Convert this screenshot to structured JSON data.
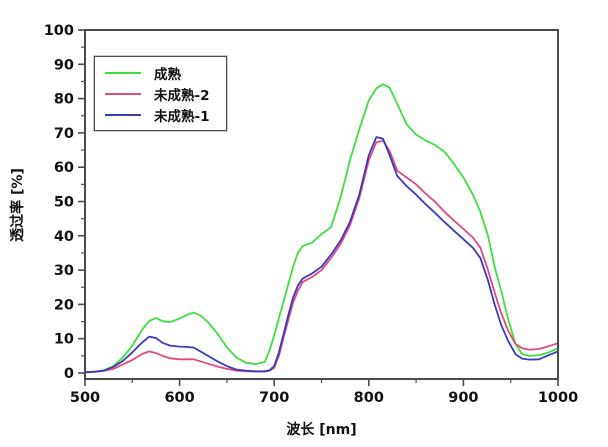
{
  "chart_data": {
    "type": "line",
    "title": "",
    "xlabel": "波长 [nm]",
    "ylabel": "透过率 [%]",
    "xlim": [
      500,
      1000
    ],
    "ylim": [
      0,
      100
    ],
    "x_major_tick_step": 100,
    "x_minor_tick_step": 50,
    "y_major_tick_step": 10,
    "y_minor_tick_step": 5,
    "grid": false,
    "legend_position": "top-left",
    "frame_color": "#4b4b4b",
    "x": [
      500,
      510,
      520,
      530,
      540,
      550,
      560,
      568,
      575,
      582,
      590,
      600,
      608,
      615,
      622,
      630,
      640,
      650,
      660,
      670,
      680,
      690,
      695,
      700,
      705,
      710,
      715,
      720,
      725,
      730,
      740,
      750,
      760,
      770,
      780,
      790,
      800,
      808,
      815,
      822,
      830,
      840,
      850,
      860,
      870,
      880,
      890,
      900,
      910,
      918,
      926,
      933,
      940,
      947,
      955,
      962,
      970,
      980,
      990,
      1000
    ],
    "series": [
      {
        "name": "成熟",
        "color": "#3fdf3f",
        "values": [
          0.2,
          0.4,
          0.8,
          2.0,
          4.5,
          8.0,
          12.5,
          15.2,
          16.0,
          15.1,
          14.8,
          15.9,
          17.0,
          17.6,
          16.8,
          14.8,
          11.5,
          7.5,
          4.5,
          3.0,
          2.6,
          3.2,
          6.5,
          11.0,
          16.0,
          21.0,
          26.0,
          31.0,
          35.0,
          37.0,
          38.0,
          40.5,
          42.5,
          51.0,
          62.0,
          71.0,
          79.5,
          83.0,
          84.2,
          83.2,
          78.5,
          72.5,
          69.5,
          67.8,
          66.5,
          64.5,
          61.0,
          57.0,
          52.0,
          47.0,
          40.0,
          31.0,
          24.0,
          16.0,
          8.5,
          5.5,
          5.0,
          5.2,
          6.0,
          7.2
        ]
      },
      {
        "name": "未成熟-2",
        "color": "#e04a82",
        "values": [
          0.2,
          0.3,
          0.6,
          1.2,
          2.5,
          3.8,
          5.5,
          6.3,
          5.8,
          5.0,
          4.3,
          4.0,
          4.0,
          4.0,
          3.4,
          2.7,
          1.9,
          1.2,
          0.7,
          0.5,
          0.4,
          0.4,
          0.7,
          1.5,
          5.0,
          10.5,
          15.5,
          20.5,
          24.0,
          26.5,
          28.0,
          30.0,
          33.5,
          37.5,
          43.0,
          51.0,
          62.0,
          67.3,
          67.7,
          64.8,
          59.0,
          57.0,
          55.0,
          52.3,
          49.9,
          47.0,
          44.5,
          42.0,
          39.5,
          36.5,
          30.0,
          23.5,
          17.5,
          12.5,
          8.5,
          7.2,
          6.8,
          7.0,
          7.8,
          8.7
        ]
      },
      {
        "name": "未成熟-1",
        "color": "#3a3abc",
        "values": [
          0.2,
          0.4,
          0.7,
          1.8,
          3.5,
          6.0,
          8.8,
          10.6,
          10.2,
          8.8,
          8.0,
          7.7,
          7.6,
          7.4,
          6.3,
          5.0,
          3.4,
          2.0,
          1.0,
          0.7,
          0.5,
          0.5,
          0.8,
          2.0,
          6.0,
          11.5,
          17.0,
          22.0,
          25.5,
          27.5,
          29.0,
          31.0,
          34.5,
          38.5,
          44.0,
          52.0,
          63.5,
          68.8,
          68.3,
          63.5,
          57.5,
          54.5,
          52.0,
          49.2,
          46.7,
          44.0,
          41.5,
          39.0,
          36.5,
          33.5,
          27.0,
          20.0,
          14.0,
          9.5,
          5.5,
          4.2,
          3.9,
          4.0,
          5.2,
          6.3
        ]
      }
    ]
  }
}
